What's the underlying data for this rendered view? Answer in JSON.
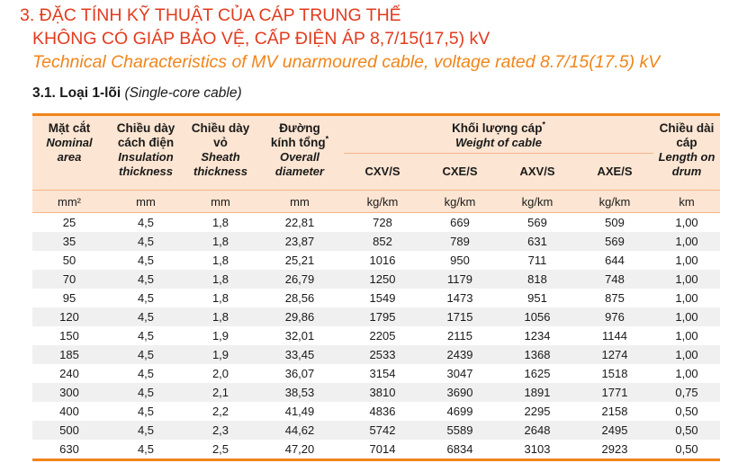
{
  "title": {
    "line1": "3. ĐẶC TÍNH KỸ THUẬT CỦA CÁP TRUNG THẾ",
    "line2": "KHÔNG CÓ GIÁP BẢO VỆ, CẤP ĐIỆN ÁP 8,7/15(17,5) kV",
    "line3": "Technical Characteristics of MV unarmoured cable, voltage rated 8.7/15(17.5) kV"
  },
  "subtitle": {
    "bold": "3.1. Loại 1-lõi",
    "italic": "(Single-core cable)"
  },
  "headers": {
    "area": {
      "vi": "Mặt cắt",
      "en1": "Nominal",
      "en2": "area"
    },
    "insulation": {
      "vi1": "Chiều dày",
      "vi2": "cách điện",
      "en1": "Insulation",
      "en2": "thickness"
    },
    "sheath": {
      "vi1": "Chiều dày",
      "vi2": "vỏ",
      "en1": "Sheath",
      "en2": "thickness"
    },
    "diameter": {
      "vi1": "Đường",
      "vi2": "kính tổng",
      "star": "*",
      "en1": "Overall",
      "en2": "diameter"
    },
    "weight": {
      "vi": "Khối lượng cáp",
      "star": "*",
      "en": "Weight of cable",
      "cols": [
        "CXV/S",
        "CXE/S",
        "AXV/S",
        "AXE/S"
      ]
    },
    "length": {
      "vi1": "Chiều dài",
      "vi2": "cáp",
      "en1": "Length on",
      "en2": "drum"
    }
  },
  "units": [
    "mm²",
    "mm",
    "mm",
    "mm",
    "kg/km",
    "kg/km",
    "kg/km",
    "kg/km",
    "km"
  ],
  "rows": [
    [
      "25",
      "4,5",
      "1,8",
      "22,81",
      "728",
      "669",
      "569",
      "509",
      "1,00"
    ],
    [
      "35",
      "4,5",
      "1,8",
      "23,87",
      "852",
      "789",
      "631",
      "569",
      "1,00"
    ],
    [
      "50",
      "4,5",
      "1,8",
      "25,21",
      "1016",
      "950",
      "711",
      "644",
      "1,00"
    ],
    [
      "70",
      "4,5",
      "1,8",
      "26,79",
      "1250",
      "1179",
      "818",
      "748",
      "1,00"
    ],
    [
      "95",
      "4,5",
      "1,8",
      "28,56",
      "1549",
      "1473",
      "951",
      "875",
      "1,00"
    ],
    [
      "120",
      "4,5",
      "1,8",
      "29,86",
      "1795",
      "1715",
      "1056",
      "976",
      "1,00"
    ],
    [
      "150",
      "4,5",
      "1,9",
      "32,01",
      "2205",
      "2115",
      "1234",
      "1144",
      "1,00"
    ],
    [
      "185",
      "4,5",
      "1,9",
      "33,45",
      "2533",
      "2439",
      "1368",
      "1274",
      "1,00"
    ],
    [
      "240",
      "4,5",
      "2,0",
      "36,07",
      "3154",
      "3047",
      "1625",
      "1518",
      "1,00"
    ],
    [
      "300",
      "4,5",
      "2,1",
      "38,53",
      "3810",
      "3690",
      "1891",
      "1771",
      "0,75"
    ],
    [
      "400",
      "4,5",
      "2,2",
      "41,49",
      "4836",
      "4699",
      "2295",
      "2158",
      "0,50"
    ],
    [
      "500",
      "4,5",
      "2,3",
      "44,62",
      "5742",
      "5589",
      "2648",
      "2495",
      "0,50"
    ],
    [
      "630",
      "4,5",
      "2,5",
      "47,20",
      "7014",
      "6834",
      "3103",
      "2923",
      "0,50"
    ]
  ]
}
